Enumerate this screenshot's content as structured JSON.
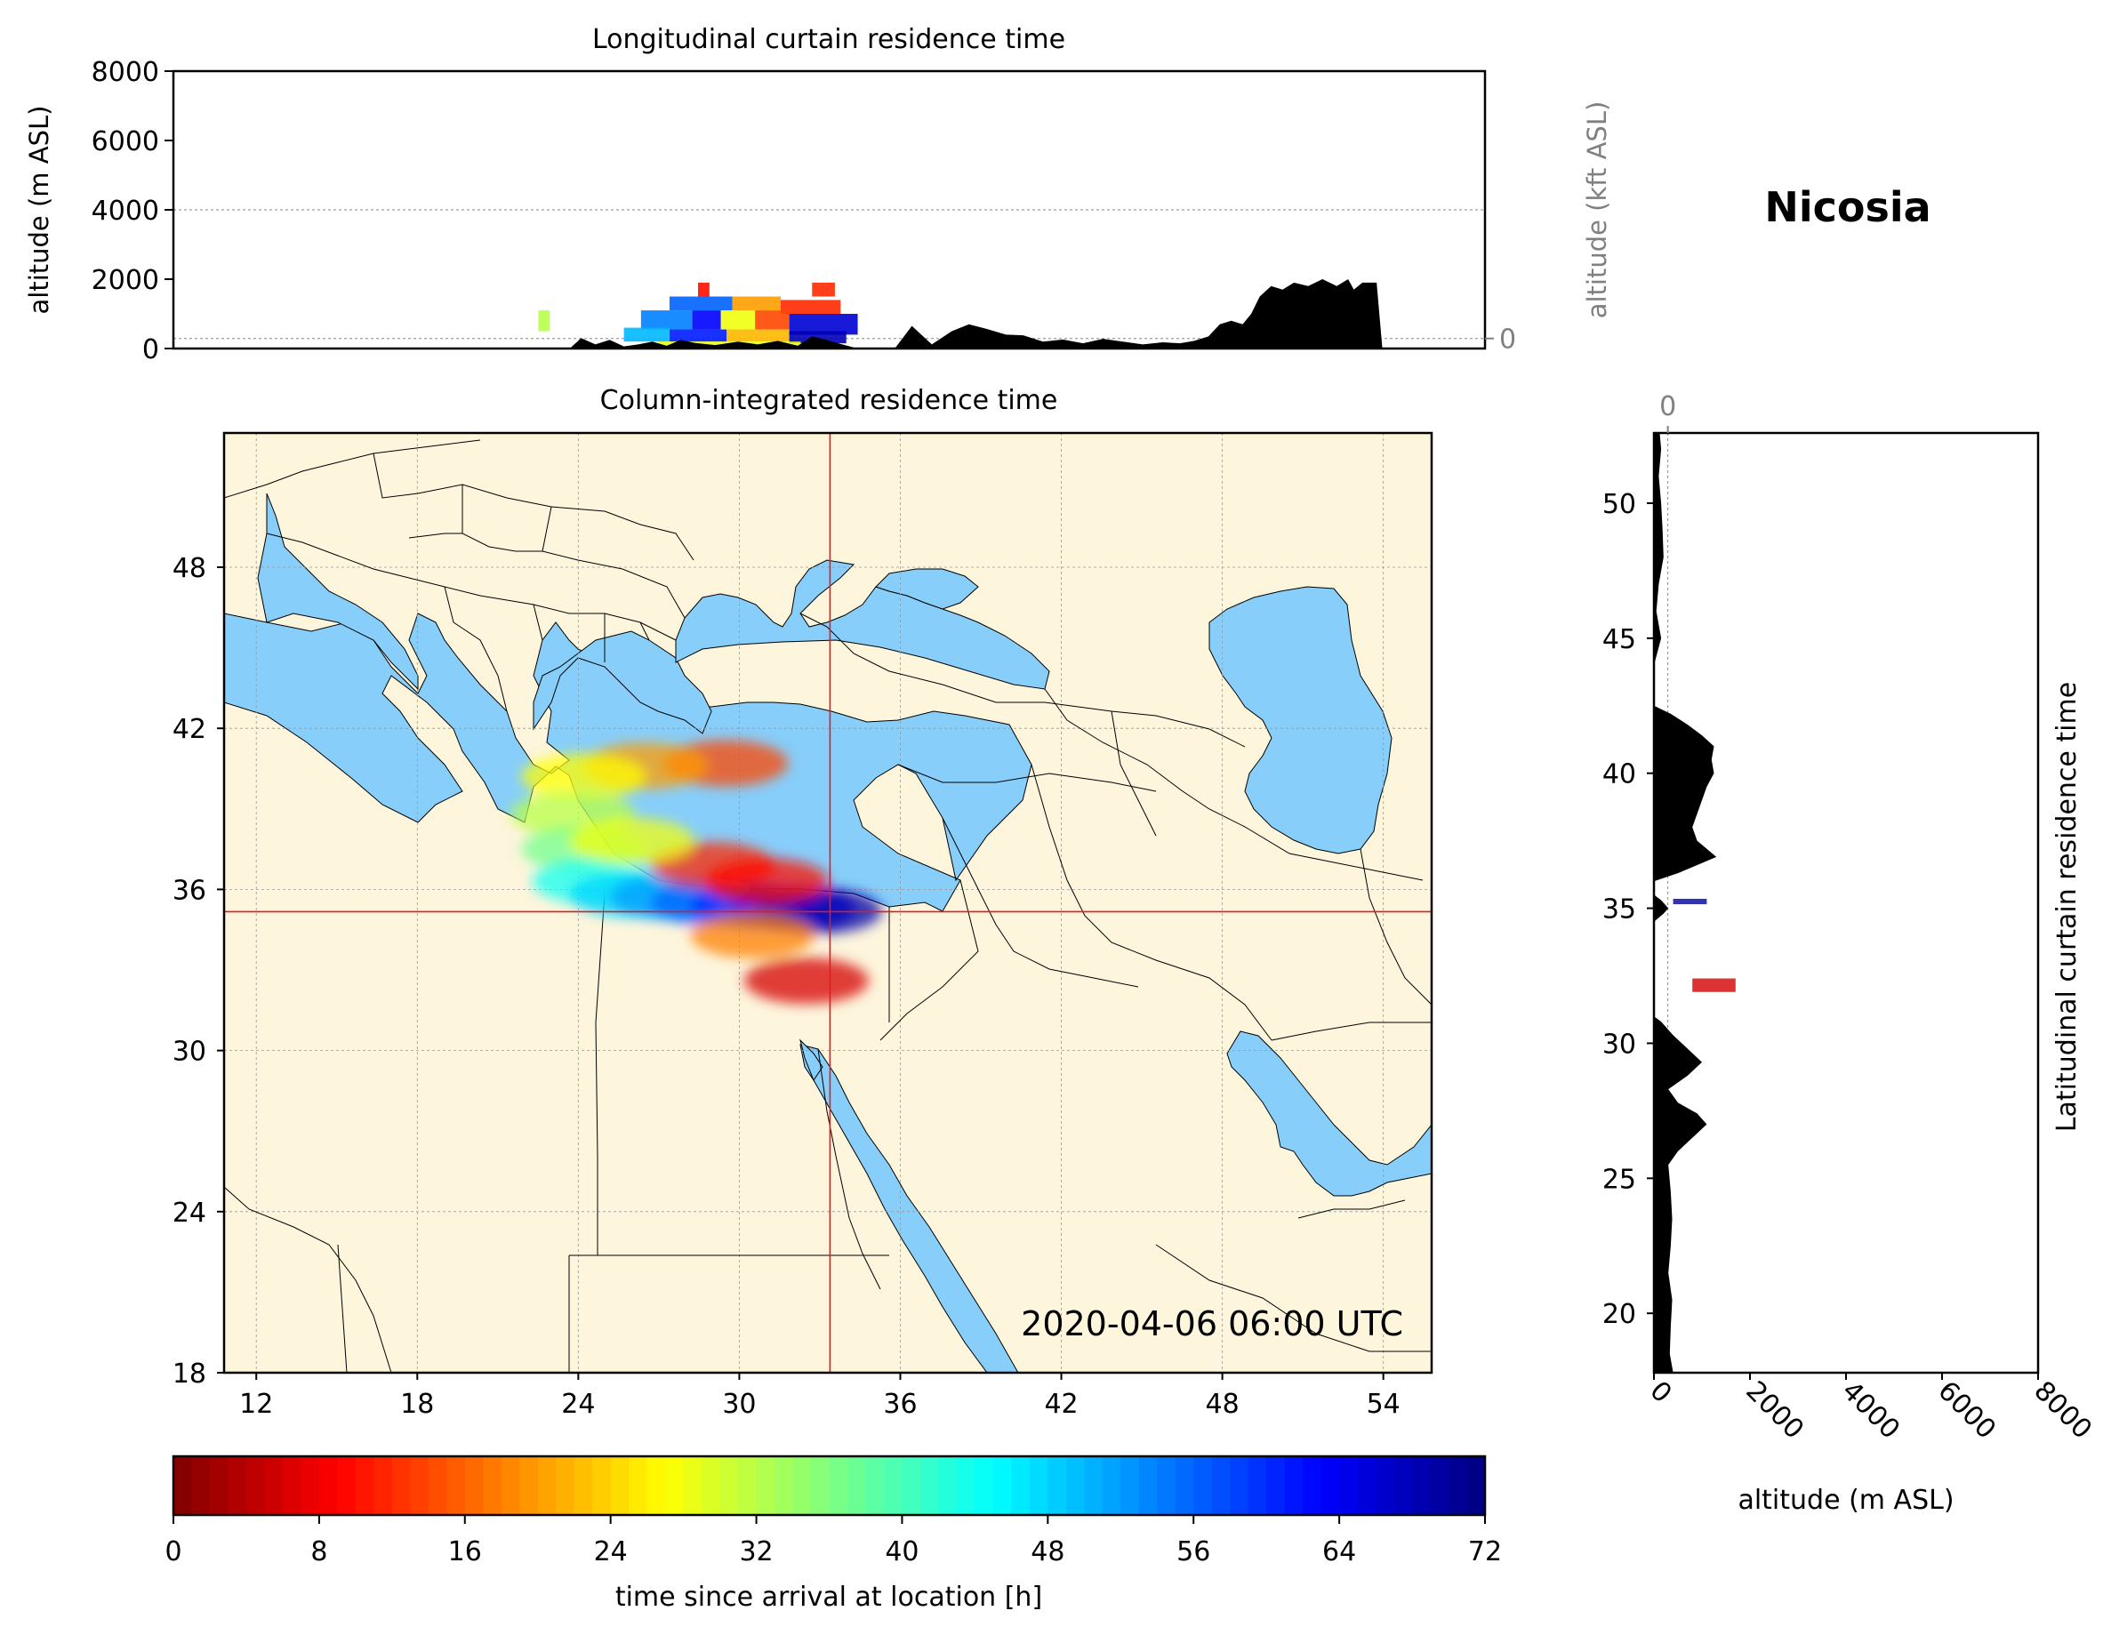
{
  "location_title": "Nicosia",
  "timestamp": "2020-04-06 06:00 UTC",
  "colors": {
    "land": "#fdf5dc",
    "water": "#87cefa",
    "terrain": "#000000",
    "crosshair": "#e41a1c",
    "secondary_axis": "#808080"
  },
  "chart_data": [
    {
      "id": "longitudinal_curtain",
      "type": "area",
      "title": "Longitudinal curtain residence time",
      "ylabel": "altitude (m ASL)",
      "ylabel_right": "altitude (kft ASL)",
      "xlim": [
        10,
        56
      ],
      "ylim": [
        0,
        8000
      ],
      "yticks": [
        0,
        2000,
        4000,
        6000,
        8000
      ],
      "yticks_right": [
        0,
        50,
        100
      ],
      "grid": true,
      "terrain": {
        "lon": [
          23.9,
          24.3,
          24.8,
          25.3,
          25.8,
          26.3,
          26.8,
          27.3,
          27.8,
          28.3,
          29.0,
          29.8,
          30.5,
          31.2,
          31.9,
          32.4,
          32.9,
          33.4,
          34.0,
          34.3,
          34.6,
          34.9,
          35.3,
          35.9,
          36.6,
          37.3,
          37.9,
          38.5,
          39.2,
          39.8,
          40.5,
          41.2,
          41.9,
          42.6,
          43.3,
          44.0,
          44.7,
          45.3,
          45.8,
          46.3,
          46.7,
          47.1,
          47.5,
          47.8,
          48.1,
          48.5,
          48.9,
          49.3,
          49.8,
          50.3,
          50.8,
          51.2,
          51.4,
          51.7,
          52.2,
          52.4
        ],
        "alt": [
          0,
          300,
          120,
          250,
          60,
          120,
          200,
          80,
          250,
          160,
          100,
          200,
          120,
          220,
          80,
          350,
          250,
          130,
          0,
          0,
          0,
          0,
          0,
          650,
          120,
          500,
          700,
          570,
          400,
          380,
          200,
          260,
          150,
          280,
          200,
          120,
          180,
          150,
          220,
          350,
          700,
          800,
          700,
          1000,
          1500,
          1800,
          1700,
          1900,
          1800,
          2000,
          1800,
          2000,
          1700,
          1900,
          1900,
          0
        ]
      },
      "plume_bands": [
        {
          "lon": [
            27.4,
            29.6
          ],
          "alt": [
            1100,
            1500
          ],
          "hours": 16
        },
        {
          "lon": [
            29.6,
            31.3
          ],
          "alt": [
            1100,
            1500
          ],
          "hours": 52
        },
        {
          "lon": [
            31.3,
            33.4
          ],
          "alt": [
            1000,
            1400
          ],
          "hours": 60
        },
        {
          "lon": [
            26.4,
            28.2
          ],
          "alt": [
            550,
            1100
          ],
          "hours": 18
        },
        {
          "lon": [
            28.2,
            29.2
          ],
          "alt": [
            550,
            1100
          ],
          "hours": 9
        },
        {
          "lon": [
            29.2,
            30.4
          ],
          "alt": [
            550,
            1100
          ],
          "hours": 44
        },
        {
          "lon": [
            30.4,
            31.6
          ],
          "alt": [
            550,
            1100
          ],
          "hours": 58
        },
        {
          "lon": [
            31.6,
            34.0
          ],
          "alt": [
            400,
            1000
          ],
          "hours": 6
        },
        {
          "lon": [
            25.8,
            27.4
          ],
          "alt": [
            200,
            600
          ],
          "hours": 22
        },
        {
          "lon": [
            27.4,
            29.4
          ],
          "alt": [
            200,
            550
          ],
          "hours": 11
        },
        {
          "lon": [
            29.4,
            31.6
          ],
          "alt": [
            200,
            550
          ],
          "hours": 50
        },
        {
          "lon": [
            31.6,
            33.6
          ],
          "alt": [
            150,
            500
          ],
          "hours": 4
        },
        {
          "lon": [
            27.0,
            32.0
          ],
          "alt": [
            0,
            200
          ],
          "hours": 44
        },
        {
          "lon": [
            32.4,
            33.2
          ],
          "alt": [
            1500,
            1900
          ],
          "hours": 60
        },
        {
          "lon": [
            28.4,
            28.8
          ],
          "alt": [
            1500,
            1900
          ],
          "hours": 62
        },
        {
          "lon": [
            22.8,
            23.2
          ],
          "alt": [
            500,
            1100
          ],
          "hours": 40
        }
      ]
    },
    {
      "id": "column_integrated",
      "type": "heatmap",
      "title": "Column-integrated residence time",
      "xticks": [
        12,
        18,
        24,
        30,
        36,
        42,
        48,
        54
      ],
      "yticks": [
        18,
        24,
        30,
        36,
        42,
        48
      ],
      "xlim": [
        10.8,
        55.8
      ],
      "ylim": [
        18,
        53
      ],
      "grid": true,
      "crosshair": {
        "lon": 33.38,
        "lat": 35.17
      },
      "plume": [
        {
          "lon": 29.5,
          "lat": 40.7,
          "hours": 58
        },
        {
          "lon": 26.5,
          "lat": 40.6,
          "hours": 52
        },
        {
          "lon": 24.2,
          "lat": 40.2,
          "hours": 45
        },
        {
          "lon": 23.8,
          "lat": 38.8,
          "hours": 40
        },
        {
          "lon": 24.2,
          "lat": 37.5,
          "hours": 35
        },
        {
          "lon": 24.6,
          "lat": 36.3,
          "hours": 28
        },
        {
          "lon": 26.0,
          "lat": 35.8,
          "hours": 24
        },
        {
          "lon": 27.5,
          "lat": 35.7,
          "hours": 20
        },
        {
          "lon": 29.0,
          "lat": 35.5,
          "hours": 16
        },
        {
          "lon": 30.5,
          "lat": 35.4,
          "hours": 12
        },
        {
          "lon": 32.0,
          "lat": 35.3,
          "hours": 8
        },
        {
          "lon": 33.0,
          "lat": 35.2,
          "hours": 3
        },
        {
          "lon": 29.0,
          "lat": 36.9,
          "hours": 60
        },
        {
          "lon": 31.0,
          "lat": 36.3,
          "hours": 62
        },
        {
          "lon": 30.5,
          "lat": 34.3,
          "hours": 54
        },
        {
          "lon": 32.5,
          "lat": 32.6,
          "hours": 66
        },
        {
          "lon": 26.0,
          "lat": 37.8,
          "hours": 44
        }
      ]
    },
    {
      "id": "latitudinal_curtain",
      "type": "area",
      "ylabel": "Latitudinal curtain residence time",
      "xlabel": "altitude (m ASL)",
      "xlim": [
        0,
        8000
      ],
      "xticks": [
        0,
        2000,
        4000,
        6000,
        8000
      ],
      "xticks_top": [
        0,
        50,
        100
      ],
      "ylim": [
        17.8,
        52.6
      ],
      "yticks": [
        20,
        25,
        30,
        35,
        40,
        45,
        50
      ],
      "grid": true,
      "terrain": {
        "lat": [
          17.8,
          18.5,
          19.5,
          20.5,
          21.5,
          22.5,
          23.5,
          24.5,
          25.5,
          26.0,
          26.5,
          27.0,
          27.4,
          27.8,
          28.3,
          28.8,
          29.3,
          29.8,
          30.3,
          30.8,
          31.0,
          34.5,
          34.8,
          35.0,
          35.3,
          35.5,
          36.0,
          36.3,
          36.6,
          36.9,
          37.2,
          37.5,
          38.0,
          38.5,
          39.0,
          39.5,
          40.0,
          40.5,
          41.0,
          41.4,
          41.8,
          42.2,
          42.5,
          44.0,
          45.0,
          46.0,
          47.0,
          48.0,
          49.0,
          50.0,
          51.0,
          52.0,
          52.6
        ],
        "alt": [
          400,
          330,
          350,
          380,
          300,
          350,
          380,
          350,
          300,
          500,
          800,
          1100,
          900,
          500,
          300,
          700,
          1000,
          700,
          400,
          150,
          0,
          0,
          200,
          300,
          150,
          0,
          0,
          500,
          900,
          1300,
          1100,
          900,
          800,
          900,
          1000,
          1100,
          1250,
          1200,
          1250,
          1000,
          700,
          350,
          0,
          0,
          150,
          50,
          100,
          200,
          180,
          150,
          100,
          150,
          120
        ]
      },
      "plume_bands": [
        {
          "lat": [
            35.15,
            35.35
          ],
          "alt": [
            400,
            1100
          ],
          "hours": 2
        },
        {
          "lat": [
            31.9,
            32.4
          ],
          "alt": [
            800,
            1700
          ],
          "hours": 66
        }
      ]
    },
    {
      "id": "colorbar",
      "type": "heatmap",
      "label": "time since arrival at location [h]",
      "range": [
        0,
        72
      ],
      "ticks": [
        0,
        8,
        16,
        24,
        32,
        40,
        48,
        56,
        64,
        72
      ],
      "levels": 72
    }
  ]
}
